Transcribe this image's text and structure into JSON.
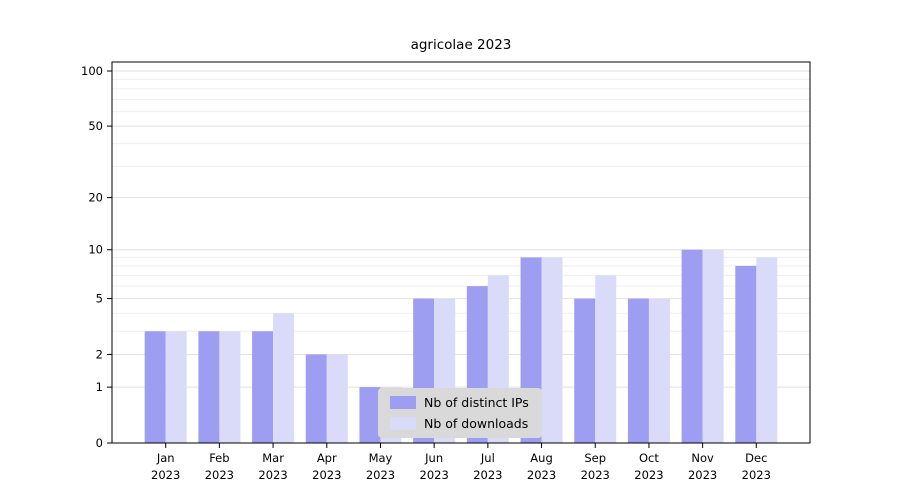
{
  "title": "agricolae 2023",
  "chart_data": {
    "type": "bar",
    "title": "agricolae 2023",
    "categories": [
      {
        "month": "Jan",
        "year": "2023"
      },
      {
        "month": "Feb",
        "year": "2023"
      },
      {
        "month": "Mar",
        "year": "2023"
      },
      {
        "month": "Apr",
        "year": "2023"
      },
      {
        "month": "May",
        "year": "2023"
      },
      {
        "month": "Jun",
        "year": "2023"
      },
      {
        "month": "Jul",
        "year": "2023"
      },
      {
        "month": "Aug",
        "year": "2023"
      },
      {
        "month": "Sep",
        "year": "2023"
      },
      {
        "month": "Oct",
        "year": "2023"
      },
      {
        "month": "Nov",
        "year": "2023"
      },
      {
        "month": "Dec",
        "year": "2023"
      }
    ],
    "series": [
      {
        "name": "Nb of distinct IPs",
        "color": "#9d9df1",
        "values": [
          3,
          3,
          3,
          2,
          1,
          5,
          6,
          9,
          5,
          5,
          10,
          8
        ]
      },
      {
        "name": "Nb of downloads",
        "color": "#dadaf9",
        "values": [
          3,
          3,
          4,
          2,
          1,
          5,
          7,
          9,
          7,
          5,
          10,
          9
        ]
      }
    ],
    "yaxis": {
      "scale": "log1p",
      "ticks": [
        0,
        1,
        2,
        5,
        10,
        20,
        50,
        100
      ],
      "minor_ticks": [
        3,
        4,
        6,
        7,
        8,
        9,
        30,
        40,
        60,
        70,
        80,
        90
      ],
      "min": 0,
      "max": 100
    },
    "xlabel": "",
    "ylabel": "",
    "grid": true,
    "legend": {
      "position": "inside-bottom-center",
      "background": "#d9d9d9"
    },
    "colors": {
      "plot_border": "#000000",
      "major_gridline": "#e2e2e2",
      "minor_gridline": "#efefef",
      "tick_text": "#000000"
    }
  }
}
